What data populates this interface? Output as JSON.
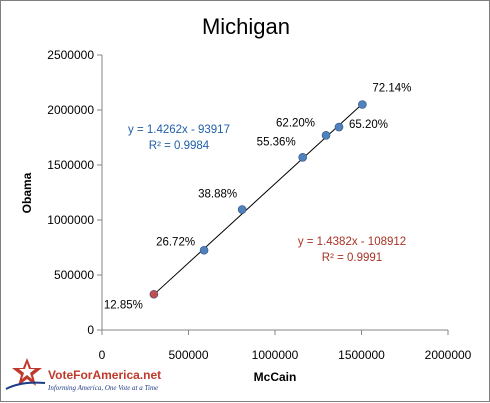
{
  "chart_data": {
    "type": "scatter",
    "title": "Michigan",
    "xlabel": "McCain",
    "ylabel": "Obama",
    "xlim": [
      0,
      2000000
    ],
    "ylim": [
      0,
      2500000
    ],
    "x_ticks": [
      "0",
      "500000",
      "1000000",
      "1500000",
      "2000000"
    ],
    "y_ticks": [
      "0",
      "500000",
      "1000000",
      "1500000",
      "2000000",
      "2500000"
    ],
    "grid": false,
    "series": [
      {
        "color": "#4f81bd",
        "points": [
          {
            "x": 590000,
            "y": 725000,
            "label": "26.72%"
          },
          {
            "x": 810000,
            "y": 1095000,
            "label": "38.88%"
          },
          {
            "x": 1160000,
            "y": 1570000,
            "label": "55.36%"
          },
          {
            "x": 1295000,
            "y": 1770000,
            "label": "62.20%"
          },
          {
            "x": 1370000,
            "y": 1845000,
            "label": "65.20%"
          },
          {
            "x": 1505000,
            "y": 2050000,
            "label": "72.14%"
          }
        ]
      },
      {
        "color": "#c0504d",
        "points": [
          {
            "x": 300000,
            "y": 325000,
            "label": "12.85%"
          }
        ]
      }
    ],
    "trendlines": [
      {
        "x_range": [
          310000,
          1505000
        ],
        "slope": 1.4382,
        "intercept": -108912,
        "color": "#000000"
      }
    ],
    "annotations": [
      {
        "equation": "y = 1.4262x - 93917",
        "r2": "R² = 0.9984",
        "color": "#1f5fa8"
      },
      {
        "equation": "y = 1.4382x - 108912",
        "r2": "R² = 0.9991",
        "color": "#a93226"
      }
    ]
  },
  "logo": {
    "name": "VoteForAmerica.net",
    "tagline": "Informing America, One Vote at a Time"
  }
}
